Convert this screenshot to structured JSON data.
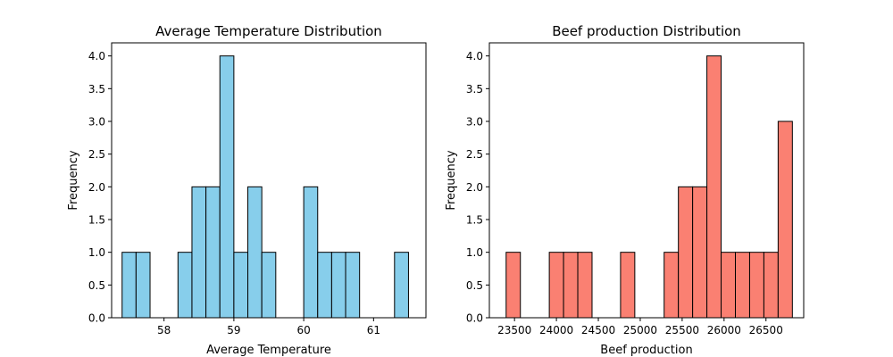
{
  "chart_data": [
    {
      "type": "bar",
      "title": "Average Temperature Distribution",
      "xlabel": "Average Temperature",
      "ylabel": "Frequency",
      "xlim": [
        57.25,
        61.75
      ],
      "ylim": [
        0,
        4.2
      ],
      "bar_color": "#87CEEB",
      "edge_color": "#000000",
      "bin_width": 0.2,
      "bins": [
        {
          "x0": 57.4,
          "x1": 57.6,
          "count": 1
        },
        {
          "x0": 57.6,
          "x1": 57.8,
          "count": 1
        },
        {
          "x0": 58.2,
          "x1": 58.4,
          "count": 1
        },
        {
          "x0": 58.4,
          "x1": 58.6,
          "count": 2
        },
        {
          "x0": 58.6,
          "x1": 58.8,
          "count": 2
        },
        {
          "x0": 58.8,
          "x1": 59.0,
          "count": 4
        },
        {
          "x0": 59.0,
          "x1": 59.2,
          "count": 1
        },
        {
          "x0": 59.2,
          "x1": 59.4,
          "count": 2
        },
        {
          "x0": 59.4,
          "x1": 59.6,
          "count": 1
        },
        {
          "x0": 60.0,
          "x1": 60.2,
          "count": 2
        },
        {
          "x0": 60.2,
          "x1": 60.4,
          "count": 1
        },
        {
          "x0": 60.4,
          "x1": 60.6,
          "count": 1
        },
        {
          "x0": 60.6,
          "x1": 60.8,
          "count": 1
        },
        {
          "x0": 61.3,
          "x1": 61.5,
          "count": 1
        }
      ],
      "xticks": [
        58,
        59,
        60,
        61
      ],
      "xtick_labels": [
        "58",
        "59",
        "60",
        "61"
      ],
      "yticks": [
        0,
        0.5,
        1,
        1.5,
        2,
        2.5,
        3,
        3.5,
        4
      ],
      "ytick_labels": [
        "0.0",
        "0.5",
        "1.0",
        "1.5",
        "2.0",
        "2.5",
        "3.0",
        "3.5",
        "4.0"
      ]
    },
    {
      "type": "bar",
      "title": "Beef production Distribution",
      "xlabel": "Beef production",
      "ylabel": "Frequency",
      "xlim": [
        23200,
        26950
      ],
      "ylim": [
        0,
        4.2
      ],
      "bar_color": "#FA8072",
      "edge_color": "#000000",
      "bin_width": 170,
      "bins": [
        {
          "x0": 23400,
          "x1": 23570,
          "count": 1
        },
        {
          "x0": 23915,
          "x1": 24085,
          "count": 1
        },
        {
          "x0": 24085,
          "x1": 24255,
          "count": 1
        },
        {
          "x0": 24255,
          "x1": 24425,
          "count": 1
        },
        {
          "x0": 24765,
          "x1": 24935,
          "count": 1
        },
        {
          "x0": 25285,
          "x1": 25455,
          "count": 1
        },
        {
          "x0": 25455,
          "x1": 25625,
          "count": 2
        },
        {
          "x0": 25625,
          "x1": 25795,
          "count": 2
        },
        {
          "x0": 25795,
          "x1": 25965,
          "count": 4
        },
        {
          "x0": 25965,
          "x1": 26135,
          "count": 1
        },
        {
          "x0": 26135,
          "x1": 26305,
          "count": 1
        },
        {
          "x0": 26305,
          "x1": 26475,
          "count": 1
        },
        {
          "x0": 26475,
          "x1": 26645,
          "count": 1
        },
        {
          "x0": 26645,
          "x1": 26815,
          "count": 3
        }
      ],
      "xticks": [
        23500,
        24000,
        24500,
        25000,
        25500,
        26000,
        26500
      ],
      "xtick_labels": [
        "23500",
        "24000",
        "24500",
        "25000",
        "25500",
        "26000",
        "26500"
      ],
      "yticks": [
        0,
        0.5,
        1,
        1.5,
        2,
        2.5,
        3,
        3.5,
        4
      ],
      "ytick_labels": [
        "0.0",
        "0.5",
        "1.0",
        "1.5",
        "2.0",
        "2.5",
        "3.0",
        "3.5",
        "4.0"
      ]
    }
  ]
}
